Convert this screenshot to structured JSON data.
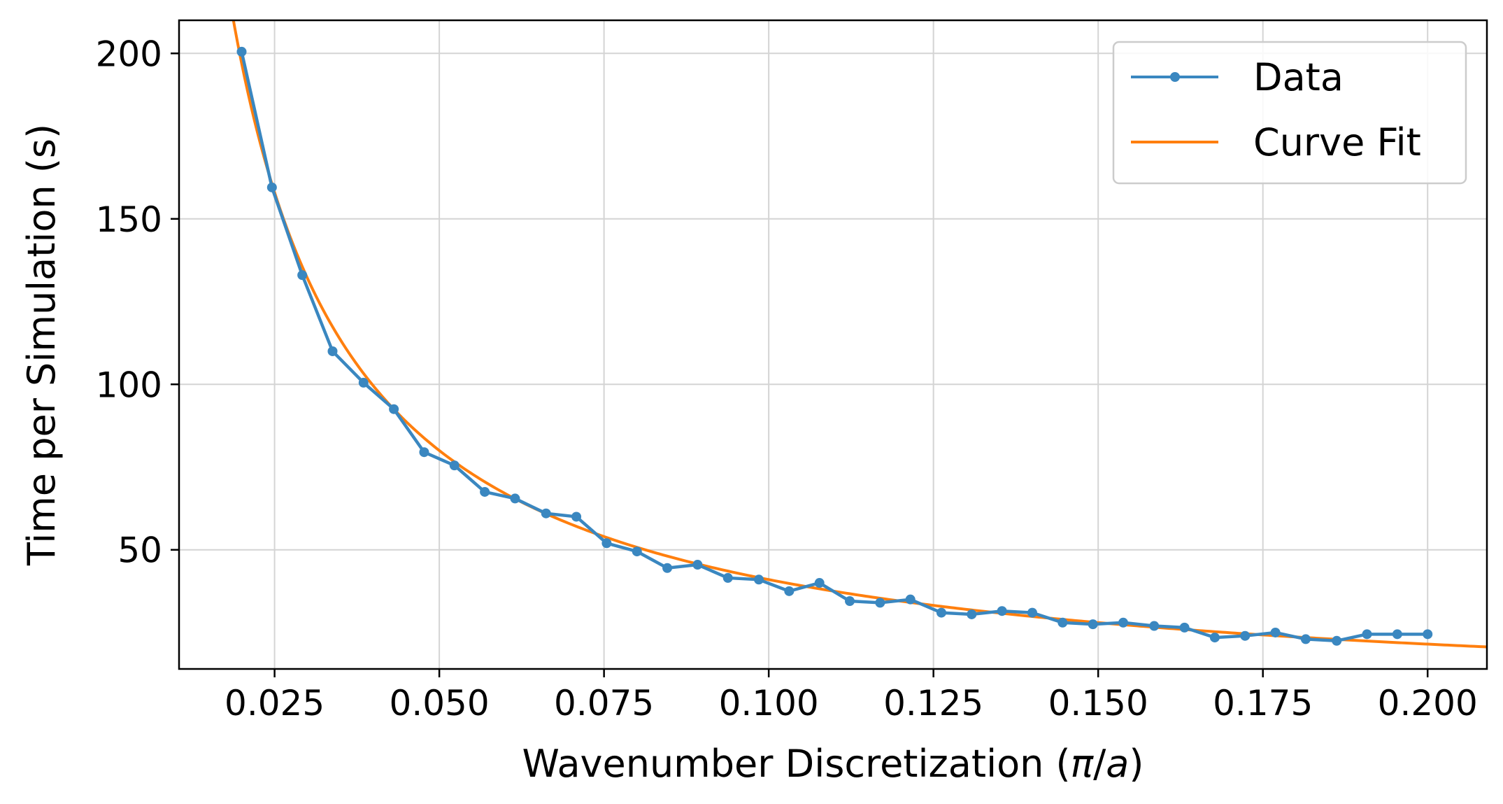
{
  "chart_data": {
    "type": "line",
    "xlabel": "Wavenumber Discretization (π/a)",
    "xlabel_parts": {
      "before": "Wavenumber Discretization (",
      "italic_pi": "π",
      "slash": "/",
      "italic_a": "a",
      "after": ")"
    },
    "ylabel": "Time per Simulation (s)",
    "xlim": [
      0.0105,
      0.209
    ],
    "ylim": [
      14,
      210
    ],
    "x_ticks": [
      0.025,
      0.05,
      0.075,
      0.1,
      0.125,
      0.15,
      0.175,
      0.2
    ],
    "x_tick_labels": [
      "0.025",
      "0.050",
      "0.075",
      "0.100",
      "0.125",
      "0.150",
      "0.175",
      "0.200"
    ],
    "y_ticks": [
      50,
      100,
      150,
      200
    ],
    "y_tick_labels": [
      "50",
      "100",
      "150",
      "200"
    ],
    "grid": true,
    "legend_position": "top-right",
    "series": [
      {
        "name": "Data",
        "color": "#3a87c0",
        "marker": "circle",
        "x": [
          0.02,
          0.0246,
          0.0292,
          0.0338,
          0.0385,
          0.0431,
          0.0477,
          0.0523,
          0.0569,
          0.0615,
          0.0662,
          0.0708,
          0.0754,
          0.08,
          0.0846,
          0.0892,
          0.0938,
          0.0985,
          0.1031,
          0.1077,
          0.1123,
          0.1169,
          0.1215,
          0.1262,
          0.1308,
          0.1354,
          0.14,
          0.1446,
          0.1492,
          0.1538,
          0.1585,
          0.1631,
          0.1677,
          0.1723,
          0.1769,
          0.1815,
          0.1862,
          0.1908,
          0.1954,
          0.2
        ],
        "y": [
          200.5,
          159.5,
          133,
          110,
          100.5,
          92.5,
          79.5,
          75.5,
          67.5,
          65.5,
          61,
          60,
          52,
          49.5,
          44.5,
          45.5,
          41.5,
          41,
          37.5,
          40,
          34.5,
          34,
          35,
          31,
          30.5,
          31.5,
          31,
          28,
          27.5,
          28,
          27,
          26.5,
          23.5,
          24,
          25,
          23,
          22.5,
          24.5,
          24.5,
          24.5
        ]
      },
      {
        "name": "Curve Fit",
        "color": "#ff7f0e",
        "model": "y = a/x + b",
        "a": 3.9,
        "b": 2.0,
        "x_range": [
          0.0105,
          0.209
        ]
      }
    ]
  }
}
